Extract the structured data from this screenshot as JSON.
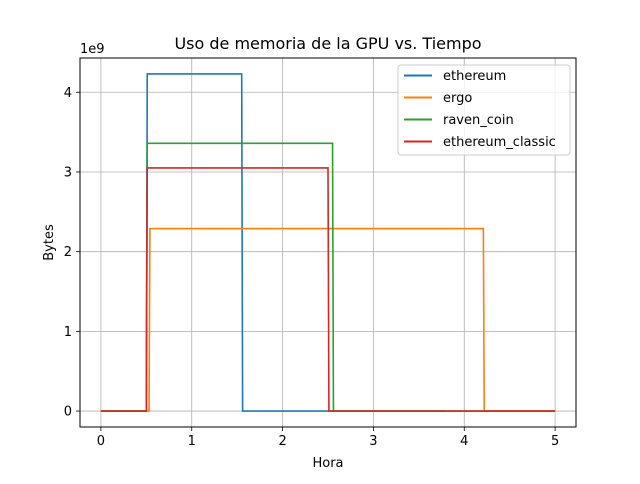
{
  "chart_data": {
    "type": "line",
    "title": "Uso de memoria de la GPU vs. Tiempo",
    "xlabel": "Hora",
    "ylabel": "Bytes",
    "offset_text": "1e9",
    "xlim": [
      -0.23,
      5.23
    ],
    "ylim": [
      -0.2,
      4.43
    ],
    "xticks": [
      0,
      1,
      2,
      3,
      4,
      5
    ],
    "xtick_labels": [
      "0",
      "1",
      "2",
      "3",
      "4",
      "5"
    ],
    "yticks": [
      0,
      1,
      2,
      3,
      4
    ],
    "ytick_labels": [
      "0",
      "1",
      "2",
      "3",
      "4"
    ],
    "grid": true,
    "legend_location": "upper right",
    "series": [
      {
        "name": "ethereum",
        "color": "#1f77b4",
        "x": [
          0,
          0.5,
          0.51,
          1.55,
          1.56,
          3.8
        ],
        "y": [
          0,
          0,
          4.23,
          4.23,
          0,
          0
        ]
      },
      {
        "name": "ergo",
        "color": "#ff7f0e",
        "x": [
          0,
          0.53,
          0.54,
          4.21,
          4.22,
          5.0
        ],
        "y": [
          0,
          0,
          2.29,
          2.29,
          0,
          0
        ]
      },
      {
        "name": "raven_coin",
        "color": "#2ca02c",
        "x": [
          0,
          0.5,
          0.51,
          2.55,
          2.56,
          5.0
        ],
        "y": [
          0,
          0,
          3.36,
          3.36,
          0,
          0
        ]
      },
      {
        "name": "ethereum_classic",
        "color": "#d62728",
        "x": [
          0,
          0.5,
          0.51,
          2.5,
          2.51,
          5.0
        ],
        "y": [
          0,
          0,
          3.05,
          3.05,
          0,
          0
        ]
      }
    ]
  }
}
